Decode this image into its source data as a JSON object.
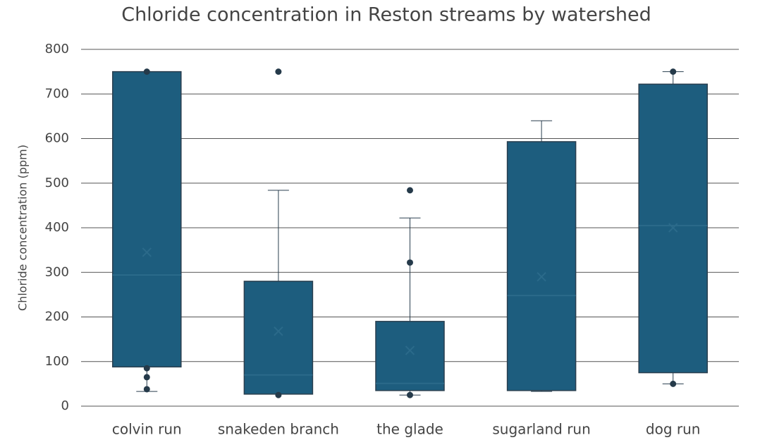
{
  "chart_data": {
    "type": "box",
    "title": "Chloride concentration in Reston streams by watershed",
    "y_label": "Chloride concentration (ppm)",
    "categories": [
      "colvin run",
      "snakeden branch",
      "the glade",
      "sugarland run",
      "dog run"
    ],
    "boxes": [
      {
        "min": 33,
        "q1": 88,
        "median": 294,
        "q3": 750,
        "max": 750,
        "mean": 345,
        "points": [
          750,
          85,
          65,
          38
        ]
      },
      {
        "min": 27,
        "q1": 27,
        "median": 70,
        "q3": 280,
        "max": 484,
        "mean": 168,
        "points": [
          750,
          25
        ]
      },
      {
        "min": 25,
        "q1": 35,
        "median": 51,
        "q3": 190,
        "max": 422,
        "mean": 125,
        "points": [
          484,
          322,
          25
        ]
      },
      {
        "min": 33,
        "q1": 35,
        "median": 248,
        "q3": 593,
        "max": 640,
        "mean": 290,
        "points": []
      },
      {
        "min": 50,
        "q1": 75,
        "median": 405,
        "q3": 722,
        "max": 750,
        "mean": 400,
        "points": [
          750,
          50
        ]
      }
    ],
    "color": "#1d5d7e",
    "ylim": [
      0,
      800
    ],
    "yticks": [
      0,
      100,
      200,
      300,
      400,
      500,
      600,
      700,
      800
    ],
    "grid": true
  }
}
